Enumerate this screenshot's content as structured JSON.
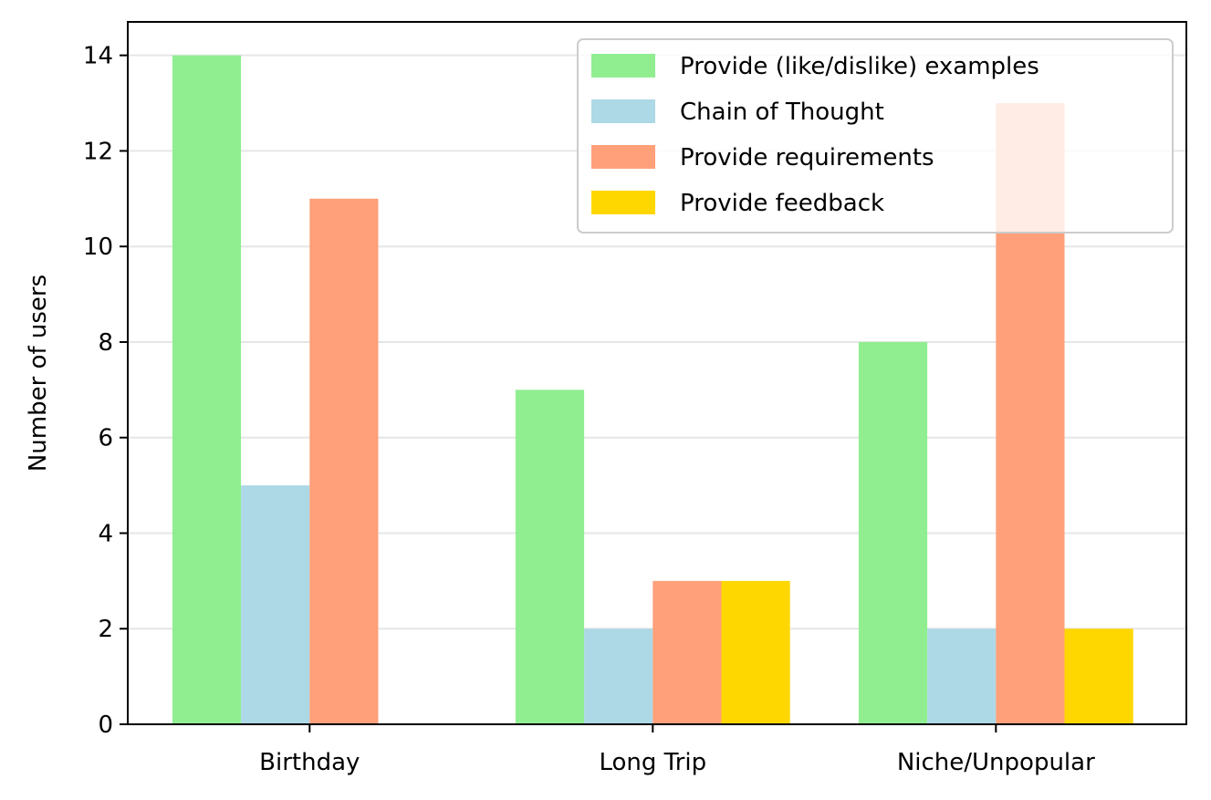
{
  "chart_data": {
    "type": "bar",
    "title": "",
    "xlabel": "",
    "ylabel": "Number of users",
    "categories": [
      "Birthday",
      "Long Trip",
      "Niche/Unpopular"
    ],
    "series": [
      {
        "name": "Provide (like/dislike) examples",
        "color": "#90ee90",
        "values": [
          14,
          7,
          8
        ]
      },
      {
        "name": "Chain of Thought",
        "color": "#add8e6",
        "values": [
          5,
          2,
          2
        ]
      },
      {
        "name": "Provide requirements",
        "color": "#ffa07a",
        "values": [
          11,
          3,
          13
        ]
      },
      {
        "name": "Provide feedback",
        "color": "#ffd700",
        "values": [
          0,
          3,
          2
        ]
      }
    ],
    "ylim": [
      0,
      14.7
    ],
    "yticks": [
      0,
      2,
      4,
      6,
      8,
      10,
      12,
      14
    ],
    "grid": "y",
    "legend_position": "top-right"
  }
}
